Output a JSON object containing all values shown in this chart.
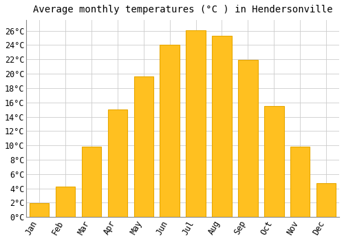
{
  "title": "Average monthly temperatures (°C ) in Hendersonville",
  "months": [
    "Jan",
    "Feb",
    "Mar",
    "Apr",
    "May",
    "Jun",
    "Jul",
    "Aug",
    "Sep",
    "Oct",
    "Nov",
    "Dec"
  ],
  "values": [
    1.9,
    4.3,
    9.8,
    15.0,
    19.6,
    24.0,
    26.1,
    25.3,
    21.9,
    15.5,
    9.8,
    4.7
  ],
  "bar_color": "#FFC020",
  "bar_edge_color": "#E8A800",
  "background_color": "#FFFFFF",
  "grid_color": "#CCCCCC",
  "ylim": [
    0,
    27.5
  ],
  "yticks": [
    0,
    2,
    4,
    6,
    8,
    10,
    12,
    14,
    16,
    18,
    20,
    22,
    24,
    26
  ],
  "title_fontsize": 10,
  "tick_fontsize": 8.5,
  "font_family": "monospace"
}
